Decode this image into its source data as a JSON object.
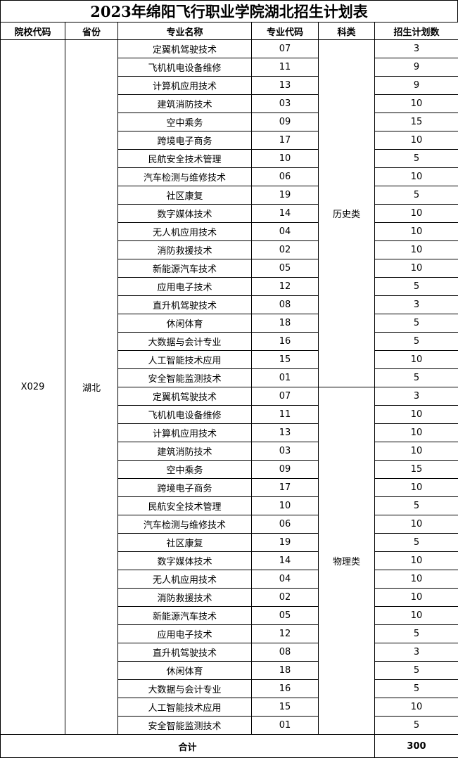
{
  "title": "2023年绵阳飞行职业学院湖北招生计划表",
  "headers": [
    "院校代码",
    "省份",
    "专业名称",
    "专业代码",
    "科类",
    "招生计划数"
  ],
  "school_code": "X029",
  "province": "湖北",
  "groups": [
    {
      "category": "历史类",
      "rows": [
        {
          "name": "定翼机驾驶技术",
          "code": "07",
          "plan": "3"
        },
        {
          "name": "飞机机电设备维修",
          "code": "11",
          "plan": "9"
        },
        {
          "name": "计算机应用技术",
          "code": "13",
          "plan": "9"
        },
        {
          "name": "建筑消防技术",
          "code": "03",
          "plan": "10"
        },
        {
          "name": "空中乘务",
          "code": "09",
          "plan": "15"
        },
        {
          "name": "跨境电子商务",
          "code": "17",
          "plan": "10"
        },
        {
          "name": "民航安全技术管理",
          "code": "10",
          "plan": "5"
        },
        {
          "name": "汽车检测与维修技术",
          "code": "06",
          "plan": "10"
        },
        {
          "name": "社区康复",
          "code": "19",
          "plan": "5"
        },
        {
          "name": "数字媒体技术",
          "code": "14",
          "plan": "10"
        },
        {
          "name": "无人机应用技术",
          "code": "04",
          "plan": "10"
        },
        {
          "name": "消防救援技术",
          "code": "02",
          "plan": "10"
        },
        {
          "name": "新能源汽车技术",
          "code": "05",
          "plan": "10"
        },
        {
          "name": "应用电子技术",
          "code": "12",
          "plan": "5"
        },
        {
          "name": "直升机驾驶技术",
          "code": "08",
          "plan": "3"
        },
        {
          "name": "休闲体育",
          "code": "18",
          "plan": "5"
        },
        {
          "name": "大数据与会计专业",
          "code": "16",
          "plan": "5"
        },
        {
          "name": "人工智能技术应用",
          "code": "15",
          "plan": "10"
        },
        {
          "name": "安全智能监测技术",
          "code": "01",
          "plan": "5"
        }
      ]
    },
    {
      "category": "物理类",
      "rows": [
        {
          "name": "定翼机驾驶技术",
          "code": "07",
          "plan": "3"
        },
        {
          "name": "飞机机电设备维修",
          "code": "11",
          "plan": "10"
        },
        {
          "name": "计算机应用技术",
          "code": "13",
          "plan": "10"
        },
        {
          "name": "建筑消防技术",
          "code": "03",
          "plan": "10"
        },
        {
          "name": "空中乘务",
          "code": "09",
          "plan": "15"
        },
        {
          "name": "跨境电子商务",
          "code": "17",
          "plan": "10"
        },
        {
          "name": "民航安全技术管理",
          "code": "10",
          "plan": "5"
        },
        {
          "name": "汽车检测与维修技术",
          "code": "06",
          "plan": "10"
        },
        {
          "name": "社区康复",
          "code": "19",
          "plan": "5"
        },
        {
          "name": "数字媒体技术",
          "code": "14",
          "plan": "10"
        },
        {
          "name": "无人机应用技术",
          "code": "04",
          "plan": "10"
        },
        {
          "name": "消防救援技术",
          "code": "02",
          "plan": "10"
        },
        {
          "name": "新能源汽车技术",
          "code": "05",
          "plan": "10"
        },
        {
          "name": "应用电子技术",
          "code": "12",
          "plan": "5"
        },
        {
          "name": "直升机驾驶技术",
          "code": "08",
          "plan": "3"
        },
        {
          "name": "休闲体育",
          "code": "18",
          "plan": "5"
        },
        {
          "name": "大数据与会计专业",
          "code": "16",
          "plan": "5"
        },
        {
          "name": "人工智能技术应用",
          "code": "15",
          "plan": "10"
        },
        {
          "name": "安全智能监测技术",
          "code": "01",
          "plan": "5"
        }
      ]
    }
  ],
  "total": {
    "label": "合计",
    "value": "300"
  }
}
